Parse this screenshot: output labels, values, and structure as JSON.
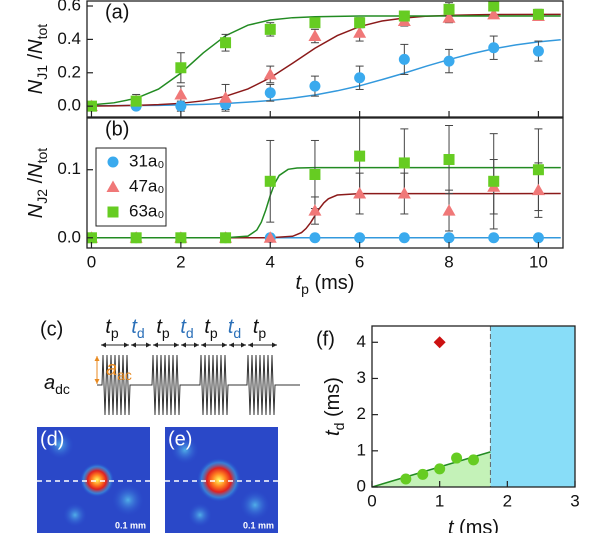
{
  "chart_data": [
    {
      "type": "scatter",
      "panel_label": "(a)",
      "ylabel": [
        {
          "text": "N",
          "italic": true
        },
        {
          "text": "J1",
          "sub": true
        },
        {
          "text": " /"
        },
        {
          "text": "N",
          "italic": true
        },
        {
          "text": "tot",
          "sub": true
        }
      ],
      "xlim": [
        -0.1,
        10.55
      ],
      "ylim": [
        -0.065,
        0.63
      ],
      "xticks": [
        0,
        2,
        4,
        6,
        8,
        10
      ],
      "xtick_labels": false,
      "yticks": [
        {
          "value": 0,
          "label": "0.0"
        },
        0.2,
        0.4,
        0.6
      ],
      "series": [
        {
          "color": "#3aaaee",
          "marker": "circle",
          "x": [
            0,
            1,
            2,
            3,
            4,
            5,
            6,
            7,
            8,
            9,
            10
          ],
          "values": [
            0.0,
            0.0,
            0.0,
            0.01,
            0.08,
            0.12,
            0.17,
            0.28,
            0.27,
            0.35,
            0.33
          ],
          "errors": [
            0.01,
            0.02,
            0.03,
            0.03,
            0.05,
            0.06,
            0.07,
            0.09,
            0.07,
            0.07,
            0.06
          ],
          "fit": {
            "color": "#3399dd",
            "x": [
              0,
              0.5,
              1,
              1.5,
              2,
              2.5,
              3,
              3.5,
              4,
              4.5,
              5,
              5.5,
              6,
              6.5,
              7,
              7.5,
              8,
              8.5,
              9,
              9.5,
              10,
              10.5
            ],
            "values": [
              0.002,
              0.003,
              0.004,
              0.005,
              0.008,
              0.011,
              0.016,
              0.024,
              0.034,
              0.048,
              0.067,
              0.092,
              0.122,
              0.159,
              0.198,
              0.24,
              0.279,
              0.314,
              0.344,
              0.367,
              0.385,
              0.398
            ]
          }
        },
        {
          "color": "#f07878",
          "marker": "triangle",
          "x": [
            0,
            1,
            2,
            3,
            4,
            5,
            6,
            7,
            8,
            9,
            10
          ],
          "values": [
            0.0,
            0.03,
            0.07,
            0.05,
            0.19,
            0.42,
            0.44,
            0.51,
            0.53,
            0.55,
            0.54
          ],
          "errors": [
            0.01,
            0.03,
            0.05,
            0.08,
            0.05,
            0.04,
            0.05,
            0.03,
            0.03,
            0.02,
            0.02
          ],
          "fit": {
            "color": "#8b1a1a",
            "x": [
              0,
              0.5,
              1,
              1.5,
              2,
              2.5,
              3,
              3.5,
              4,
              4.5,
              5,
              5.5,
              6,
              6.5,
              7,
              7.5,
              8,
              8.5,
              9,
              10.5
            ],
            "values": [
              0.001,
              0.002,
              0.005,
              0.009,
              0.017,
              0.032,
              0.059,
              0.103,
              0.17,
              0.257,
              0.347,
              0.423,
              0.477,
              0.51,
              0.528,
              0.539,
              0.544,
              0.547,
              0.549,
              0.55
            ]
          }
        },
        {
          "color": "#66cc22",
          "marker": "square",
          "x": [
            0,
            1,
            2,
            3,
            4,
            5,
            6,
            7,
            8,
            9,
            10
          ],
          "values": [
            0.0,
            0.03,
            0.23,
            0.38,
            0.46,
            0.5,
            0.5,
            0.54,
            0.58,
            0.6,
            0.55
          ],
          "errors": [
            0.01,
            0.04,
            0.09,
            0.05,
            0.04,
            0.03,
            0.03,
            0.03,
            0.04,
            0.03,
            0.03
          ],
          "fit": {
            "color": "#228b22",
            "x": [
              0,
              0.5,
              1,
              1.5,
              2,
              2.5,
              3,
              3.5,
              4,
              4.5,
              5,
              5.5,
              6,
              10.5
            ],
            "values": [
              0.008,
              0.02,
              0.047,
              0.102,
              0.198,
              0.319,
              0.422,
              0.485,
              0.516,
              0.53,
              0.536,
              0.538,
              0.54,
              0.54
            ]
          }
        }
      ]
    },
    {
      "type": "scatter",
      "panel_label": "(b)",
      "ylabel": [
        {
          "text": "N",
          "italic": true
        },
        {
          "text": "J2",
          "sub": true
        },
        {
          "text": " /"
        },
        {
          "text": "N",
          "italic": true
        },
        {
          "text": "tot",
          "sub": true
        }
      ],
      "xlabel": [
        {
          "text": "t",
          "italic": true
        },
        {
          "text": "p",
          "sub": true
        },
        {
          "text": " (ms)"
        }
      ],
      "xlim": [
        -0.1,
        10.55
      ],
      "ylim": [
        -0.015,
        0.176
      ],
      "xticks": [
        0,
        2,
        4,
        6,
        8,
        10
      ],
      "xtick_labels": true,
      "yticks": [
        {
          "value": 0,
          "label": "0.0"
        },
        0.1
      ],
      "legend": "upper left",
      "series": [
        {
          "name": "31a₀",
          "color": "#3aaaee",
          "marker": "circle",
          "x": [
            0,
            1,
            2,
            3,
            4,
            5,
            6,
            7,
            8,
            9,
            10
          ],
          "values": [
            0,
            0,
            0,
            0,
            0,
            0,
            0,
            0,
            0,
            0,
            0
          ],
          "errors": [
            0.002,
            0.002,
            0.002,
            0.002,
            0.002,
            0.002,
            0.002,
            0.002,
            0.002,
            0.002,
            0.002
          ],
          "fit": {
            "color": "#3399dd",
            "x": [
              0,
              10.5
            ],
            "values": [
              0,
              0
            ]
          }
        },
        {
          "name": "47a₀",
          "color": "#f07878",
          "marker": "triangle",
          "x": [
            0,
            1,
            2,
            3,
            4,
            5,
            6,
            7,
            8,
            9,
            10
          ],
          "values": [
            0,
            0,
            0,
            0,
            0,
            0.04,
            0.065,
            0.065,
            0.04,
            0.075,
            0.07
          ],
          "errors": [
            0,
            0,
            0,
            0,
            0.002,
            0.02,
            0.03,
            0.03,
            0.03,
            0.04,
            0.04
          ],
          "fit": {
            "color": "#8b1a1a",
            "x": [
              0,
              4,
              4.5,
              4.7,
              4.8,
              4.9,
              5,
              5.1,
              5.2,
              5.3,
              5.5,
              6,
              10.5
            ],
            "values": [
              0,
              0.0001,
              0.0022,
              0.0077,
              0.0136,
              0.022,
              0.0325,
              0.043,
              0.0514,
              0.0573,
              0.0628,
              0.0648,
              0.065
            ]
          }
        },
        {
          "name": "63a₀",
          "color": "#66cc22",
          "marker": "square",
          "x": [
            0,
            1,
            2,
            3,
            4,
            5,
            6,
            7,
            8,
            9,
            10
          ],
          "values": [
            0,
            0,
            0,
            0,
            0.083,
            0.093,
            0.12,
            0.11,
            0.115,
            0.083,
            0.1
          ],
          "errors": [
            0,
            0,
            0,
            0,
            0.06,
            0.05,
            0.06,
            0.05,
            0.05,
            0.07,
            0.06
          ],
          "fit": {
            "color": "#228b22",
            "x": [
              0,
              3,
              3.5,
              3.7,
              3.8,
              3.9,
              4,
              4.1,
              4.2,
              4.4,
              4.6,
              5,
              10.5
            ],
            "values": [
              0,
              0,
              0.0024,
              0.0114,
              0.0229,
              0.0409,
              0.0621,
              0.08,
              0.0916,
              0.1006,
              0.1025,
              0.103,
              0.103
            ]
          }
        }
      ]
    },
    {
      "type": "scatter",
      "panel_label": "(f)",
      "ylabel": [
        {
          "text": "t",
          "italic": true
        },
        {
          "text": "d",
          "sub": true
        },
        {
          "text": " (ms)"
        }
      ],
      "xlabel": [
        {
          "text": "t",
          "italic": true
        },
        {
          "text": " (ms)"
        }
      ],
      "xlim": [
        0,
        3
      ],
      "ylim": [
        0,
        4.45
      ],
      "xticks": [
        0,
        1,
        2,
        3
      ],
      "xtick_labels": true,
      "yticks": [
        0,
        1,
        2,
        3,
        4
      ],
      "vline": 1.75,
      "region_color": "#88ddf8",
      "series": [
        {
          "color": "#66cc22",
          "marker": "circle",
          "x": [
            0.5,
            0.75,
            1,
            1.25,
            1.5
          ],
          "values": [
            0.22,
            0.35,
            0.5,
            0.8,
            0.75
          ],
          "fit": {
            "color": "#228b22",
            "fill": "#c4f2b8",
            "x": [
              0,
              1.75
            ],
            "values": [
              0,
              0.97
            ]
          }
        },
        {
          "color": "#cc1111",
          "marker": "diamond",
          "x": [
            1
          ],
          "values": [
            4
          ]
        }
      ]
    }
  ],
  "schematic": {
    "label": "(c)",
    "tp": [
      {
        "text": "t",
        "italic": true
      },
      {
        "text": "p",
        "sub": true
      }
    ],
    "td": [
      {
        "text": "t",
        "italic": true
      },
      {
        "text": "d",
        "sub": true
      }
    ],
    "aac": [
      {
        "text": "a",
        "italic": true
      },
      {
        "text": "ac",
        "sub": true
      }
    ],
    "adc": [
      {
        "text": "a",
        "italic": true
      },
      {
        "text": "dc",
        "sub": true
      }
    ]
  },
  "images": [
    {
      "label": "(d)",
      "scale": "0.1 mm"
    },
    {
      "label": "(e)",
      "scale": "0.1 mm"
    }
  ]
}
